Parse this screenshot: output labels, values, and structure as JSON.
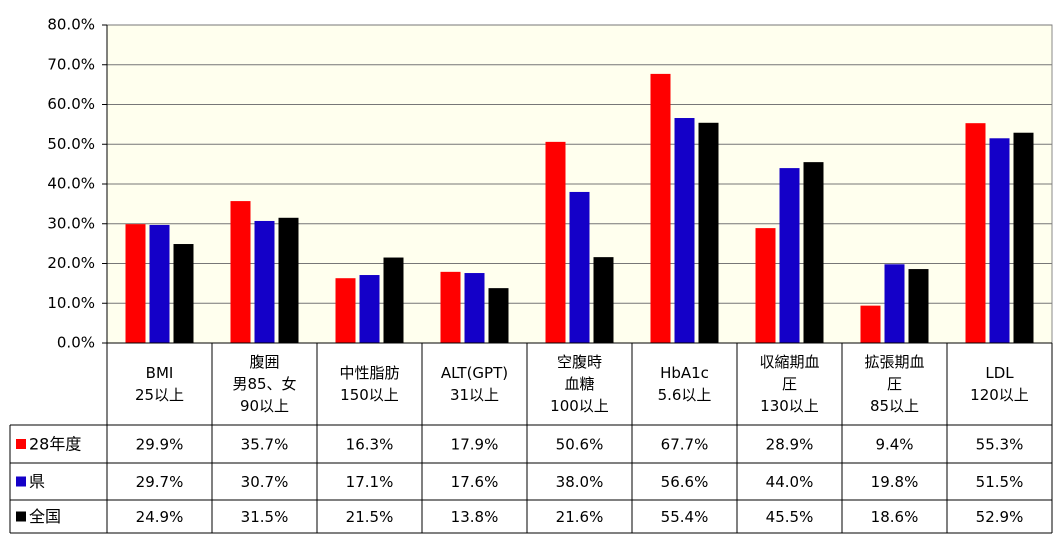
{
  "chart_data": {
    "type": "bar",
    "categories": [
      "BMI\n25以上",
      "腹囲\n男85、女\n90以上",
      "中性脂肪\n150以上",
      "ALT(GPT)\n31以上",
      "空腹時\n血糖\n100以上",
      "HbA1c\n5.6以上",
      "収縮期血\n圧\n130以上",
      "拡張期血\n圧\n85以上",
      "LDL\n120以上"
    ],
    "series": [
      {
        "name": "28年度",
        "color": "#ff0000",
        "values": [
          29.9,
          35.7,
          16.3,
          17.9,
          50.6,
          67.7,
          28.9,
          9.4,
          55.3
        ],
        "value_labels": [
          "29.9%",
          "35.7%",
          "16.3%",
          "17.9%",
          "50.6%",
          "67.7%",
          "28.9%",
          "9.4%",
          "55.3%"
        ]
      },
      {
        "name": "県",
        "color": "#1400c8",
        "values": [
          29.7,
          30.7,
          17.1,
          17.6,
          38.0,
          56.6,
          44.0,
          19.8,
          51.5
        ],
        "value_labels": [
          "29.7%",
          "30.7%",
          "17.1%",
          "17.6%",
          "38.0%",
          "56.6%",
          "44.0%",
          "19.8%",
          "51.5%"
        ]
      },
      {
        "name": "全国",
        "color": "#000000",
        "values": [
          24.9,
          31.5,
          21.5,
          13.8,
          21.6,
          55.4,
          45.5,
          18.6,
          52.9
        ],
        "value_labels": [
          "24.9%",
          "31.5%",
          "21.5%",
          "13.8%",
          "21.6%",
          "55.4%",
          "45.5%",
          "18.6%",
          "52.9%"
        ]
      }
    ],
    "ylim": [
      0,
      80
    ],
    "yticks": [
      {
        "value": 0,
        "label": "0.0%"
      },
      {
        "value": 10,
        "label": "10.0%"
      },
      {
        "value": 20,
        "label": "20.0%"
      },
      {
        "value": 30,
        "label": "30.0%"
      },
      {
        "value": 40,
        "label": "40.0%"
      },
      {
        "value": 50,
        "label": "50.0%"
      },
      {
        "value": 60,
        "label": "60.0%"
      },
      {
        "value": 70,
        "label": "70.0%"
      },
      {
        "value": 80,
        "label": "80.0%"
      }
    ],
    "grid": true
  }
}
